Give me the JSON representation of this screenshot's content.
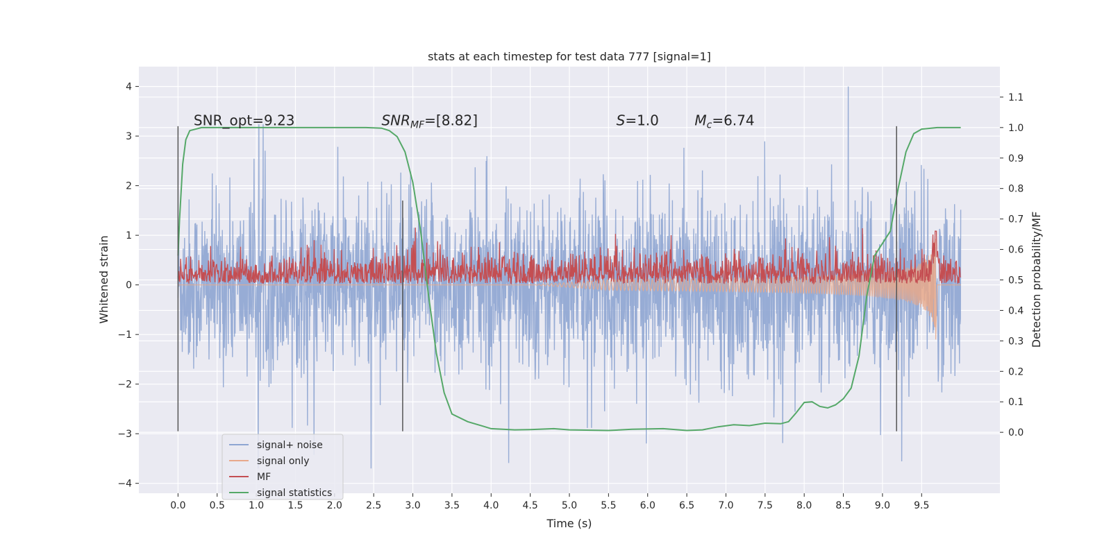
{
  "chart_data": {
    "type": "line",
    "title": "stats at each timestep for test data 777 [signal=1]",
    "xlabel": "Time (s)",
    "ylabel": "Whitened strain",
    "y2label": "Detection probability/MF",
    "xlim": [
      -0.5,
      10.5
    ],
    "ylim": [
      -4.2,
      4.4
    ],
    "y2lim": [
      -0.2,
      1.2
    ],
    "xticks": [
      "0.0",
      "0.5",
      "1.0",
      "1.5",
      "2.0",
      "2.5",
      "3.0",
      "3.5",
      "4.0",
      "4.5",
      "5.0",
      "5.5",
      "6.0",
      "6.5",
      "7.0",
      "7.5",
      "8.0",
      "8.5",
      "9.0",
      "9.5"
    ],
    "yticks": [
      "−4",
      "−3",
      "−2",
      "−1",
      "0",
      "1",
      "2",
      "3",
      "4"
    ],
    "y2ticks": [
      "0.0",
      "0.1",
      "0.2",
      "0.3",
      "0.4",
      "0.5",
      "0.6",
      "0.7",
      "0.8",
      "0.9",
      "1.0",
      "1.1"
    ],
    "grid": true,
    "legend_position": "lower-left",
    "annotations": [
      {
        "text": "SNR_opt=9.23",
        "x": 0.2,
        "y": 3.3
      },
      {
        "text": "SNR",
        "sub": "MF",
        "rest": "=[8.82]",
        "x": 2.6,
        "y": 3.3
      },
      {
        "text": "S",
        "rest": "=1.0",
        "x": 5.6,
        "y": 3.3
      },
      {
        "text": "M",
        "sub": "c",
        "rest": "=6.74",
        "x": 6.6,
        "y": 3.3
      }
    ],
    "vlines": [
      {
        "x": 0.0,
        "ymin": -2.95,
        "ymax": 3.2
      },
      {
        "x": 2.87,
        "ymin": -2.95,
        "ymax": 1.7
      },
      {
        "x": 9.18,
        "ymin": -2.95,
        "ymax": 3.2
      }
    ],
    "series": [
      {
        "name": "signal+ noise",
        "color": "#8ea5d2",
        "axis": "left",
        "x_range": [
          0,
          10.0
        ],
        "amplitude_core": 1.3,
        "amplitude_peak": 4.0
      },
      {
        "name": "signal only",
        "color": "#e8a88a",
        "axis": "left",
        "x_range": [
          0,
          10.0
        ],
        "chirp_start": 5.5,
        "chirp_peak_time": 9.68,
        "chirp_peak_amp": 1.0
      },
      {
        "name": "MF",
        "color": "#c44e52",
        "axis": "right",
        "x_range": [
          0,
          10.0
        ],
        "baseline": 0.5,
        "jitter": 0.06,
        "peak_time": 9.68,
        "peak_value": 0.66
      },
      {
        "name": "signal statistics",
        "color": "#55a868",
        "axis": "right",
        "x": [
          0,
          0.02,
          0.06,
          0.1,
          0.15,
          0.3,
          0.5,
          1.0,
          1.5,
          2.0,
          2.4,
          2.6,
          2.7,
          2.8,
          2.9,
          3.0,
          3.1,
          3.2,
          3.3,
          3.4,
          3.5,
          3.7,
          3.9,
          4.0,
          4.3,
          4.5,
          4.8,
          5.0,
          5.5,
          5.8,
          6.2,
          6.5,
          6.7,
          6.9,
          7.1,
          7.3,
          7.5,
          7.7,
          7.8,
          7.9,
          8.0,
          8.1,
          8.2,
          8.3,
          8.4,
          8.5,
          8.6,
          8.7,
          8.8,
          8.9,
          9.0,
          9.1,
          9.2,
          9.3,
          9.4,
          9.5,
          9.7,
          10.0
        ],
        "y": [
          0.58,
          0.7,
          0.88,
          0.96,
          0.99,
          1.0,
          1.0,
          1.0,
          1.0,
          1.0,
          1.0,
          0.998,
          0.99,
          0.97,
          0.92,
          0.82,
          0.66,
          0.45,
          0.26,
          0.13,
          0.06,
          0.035,
          0.02,
          0.012,
          0.008,
          0.009,
          0.012,
          0.008,
          0.006,
          0.01,
          0.012,
          0.006,
          0.008,
          0.018,
          0.025,
          0.022,
          0.03,
          0.028,
          0.035,
          0.065,
          0.098,
          0.1,
          0.085,
          0.08,
          0.09,
          0.11,
          0.145,
          0.25,
          0.45,
          0.58,
          0.62,
          0.66,
          0.8,
          0.92,
          0.98,
          0.995,
          1.0,
          1.0
        ]
      }
    ]
  }
}
